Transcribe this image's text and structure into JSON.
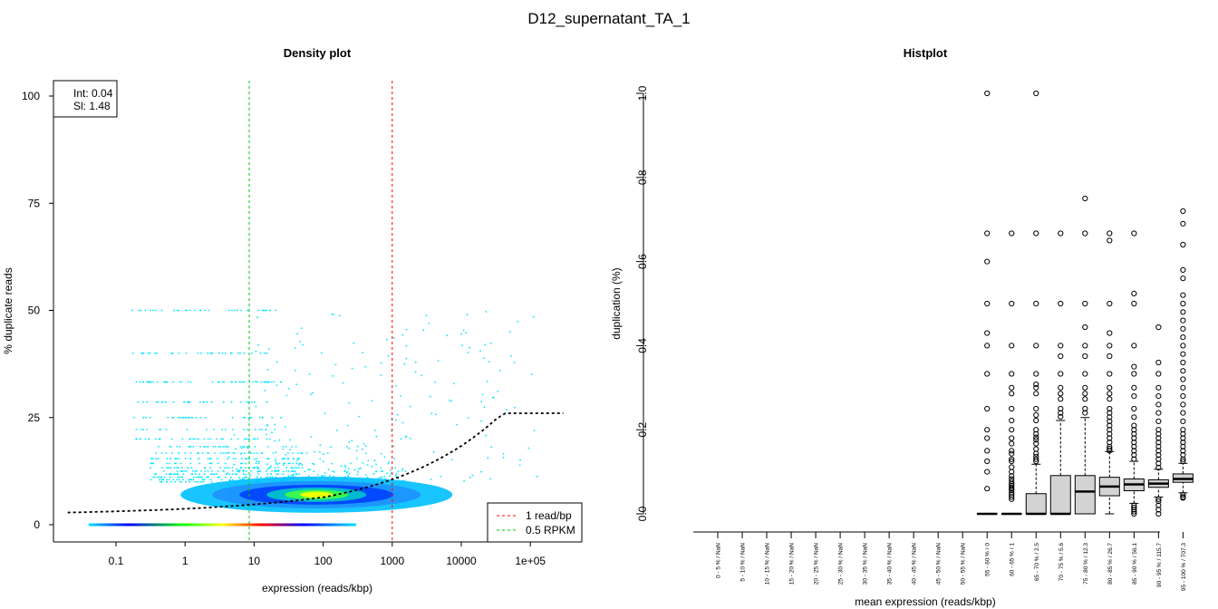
{
  "figure_title": "D12_supernatant_TA_1",
  "chart_data": [
    {
      "type": "scatter",
      "title": "Density plot",
      "xlabel": "expression (reads/kbp)",
      "ylabel": "% duplicate reads",
      "xscale": "log",
      "x_ticks": [
        0.1,
        1,
        10,
        100,
        1000,
        10000,
        100000
      ],
      "x_tick_labels": [
        "0.1",
        "1",
        "10",
        "100",
        "1000",
        "10000",
        "1e+05"
      ],
      "y_ticks": [
        0,
        25,
        50,
        75,
        100
      ],
      "y_tick_labels": [
        "0",
        "25",
        "50",
        "75",
        "100"
      ],
      "xlim": [
        0.02,
        300000
      ],
      "ylim": [
        0,
        100
      ],
      "fit_label_int": "Int: 0.04",
      "fit_label_sl": "Sl: 1.48",
      "fit_intercept": 0.04,
      "fit_slope": 1.48,
      "vlines": [
        {
          "x": 1000,
          "label": "1 read/bp",
          "color": "#ff0000"
        },
        {
          "x": 8.5,
          "label": "0.5 RPKM",
          "color": "#00cc00"
        }
      ],
      "density_center": {
        "x": 80,
        "y": 7
      },
      "legend_position": "bottom-right",
      "fitbox_position": "top-left",
      "point_color": "#00e5ff"
    },
    {
      "type": "box",
      "title": "Histplot",
      "xlabel": "mean expression (reads/kbp)",
      "ylabel": "duplication (%)",
      "y_ticks": [
        0.0,
        0.2,
        0.4,
        0.6,
        0.8,
        1.0
      ],
      "y_tick_labels": [
        "0.0",
        "0.2",
        "0.4",
        "0.6",
        "0.8",
        "1.0"
      ],
      "ylim": [
        0,
        1
      ],
      "box_fill": "#d3d3d3",
      "categories": [
        "0 - 5 % / NaN",
        "5 - 10 % / NaN",
        "10 - 15 % / NaN",
        "15 - 20 % / NaN",
        "20 - 25 % / NaN",
        "25 - 30 % / NaN",
        "30 - 35 % / NaN",
        "35 - 40 % / NaN",
        "40 - 45 % / NaN",
        "45 - 50 % / NaN",
        "50 - 55 % / NaN",
        "55 - 60 % / 0",
        "60 - 65 % / 1",
        "65 - 70 % / 2.5",
        "70 - 75 % / 5.6",
        "75 - 80 % / 12.3",
        "80 - 85 % / 26.7",
        "85 - 90 % / 56.1",
        "90 - 95 % / 115.7",
        "95 - 100 % / 707.3"
      ],
      "boxes": [
        null,
        null,
        null,
        null,
        null,
        null,
        null,
        null,
        null,
        null,
        null,
        {
          "q1": 0,
          "median": 0,
          "q3": 0,
          "wlo": 0,
          "whi": 0,
          "outliers": [
            1.0,
            0.667,
            0.6,
            0.5,
            0.43,
            0.4,
            0.333,
            0.25,
            0.2,
            0.18,
            0.15,
            0.125,
            0.1,
            0.06
          ]
        },
        {
          "q1": 0,
          "median": 0,
          "q3": 0,
          "wlo": 0,
          "whi": 0,
          "outliers": [
            0.667,
            0.5,
            0.4,
            0.333,
            0.3,
            0.286,
            0.25,
            0.222,
            0.2,
            0.18,
            0.167,
            0.15,
            0.143,
            0.13,
            0.125,
            0.111,
            0.1,
            0.09,
            0.083,
            0.077,
            0.071,
            0.067,
            0.063,
            0.059,
            0.056,
            0.05,
            0.045,
            0.04,
            0.035
          ]
        },
        {
          "q1": 0,
          "median": 0,
          "q3": 0.048,
          "wlo": 0,
          "whi": 0.118,
          "outliers": [
            1.0,
            0.667,
            0.5,
            0.4,
            0.333,
            0.308,
            0.3,
            0.286,
            0.25,
            0.235,
            0.222,
            0.2,
            0.19,
            0.182,
            0.176,
            0.167,
            0.154,
            0.143,
            0.136,
            0.13,
            0.125
          ]
        },
        {
          "q1": 0,
          "median": 0,
          "q3": 0.091,
          "wlo": 0,
          "whi": 0.222,
          "outliers": [
            0.667,
            0.5,
            0.4,
            0.375,
            0.333,
            0.3,
            0.286,
            0.273,
            0.25,
            0.24,
            0.231
          ]
        },
        {
          "q1": 0,
          "median": 0.053,
          "q3": 0.091,
          "wlo": 0,
          "whi": 0.229,
          "outliers": [
            0.75,
            0.667,
            0.5,
            0.444,
            0.4,
            0.375,
            0.333,
            0.3,
            0.286,
            0.273,
            0.25,
            0.24
          ]
        },
        {
          "q1": 0.043,
          "median": 0.065,
          "q3": 0.087,
          "wlo": 0,
          "whi": 0.148,
          "outliers": [
            0.667,
            0.65,
            0.5,
            0.43,
            0.4,
            0.375,
            0.333,
            0.3,
            0.286,
            0.273,
            0.25,
            0.24,
            0.23,
            0.22,
            0.21,
            0.2,
            0.19,
            0.18,
            0.17,
            0.16,
            0.155,
            0.15
          ]
        },
        {
          "q1": 0.055,
          "median": 0.07,
          "q3": 0.083,
          "wlo": 0.025,
          "whi": 0.125,
          "outliers": [
            0.667,
            0.524,
            0.5,
            0.4,
            0.35,
            0.333,
            0.3,
            0.28,
            0.25,
            0.23,
            0.21,
            0.2,
            0.19,
            0.18,
            0.17,
            0.16,
            0.15,
            0.14,
            0.13,
            0.02,
            0.015,
            0.01,
            0.005,
            0
          ]
        },
        {
          "q1": 0.063,
          "median": 0.072,
          "q3": 0.081,
          "wlo": 0.04,
          "whi": 0.106,
          "outliers": [
            0.444,
            0.36,
            0.333,
            0.3,
            0.28,
            0.26,
            0.24,
            0.22,
            0.2,
            0.19,
            0.18,
            0.17,
            0.16,
            0.15,
            0.14,
            0.13,
            0.12,
            0.11,
            0.035,
            0.03,
            0.02,
            0.01,
            0
          ]
        },
        {
          "q1": 0.075,
          "median": 0.083,
          "q3": 0.095,
          "wlo": 0.05,
          "whi": 0.12,
          "outliers": [
            0.72,
            0.69,
            0.64,
            0.58,
            0.56,
            0.52,
            0.5,
            0.48,
            0.46,
            0.44,
            0.42,
            0.4,
            0.38,
            0.36,
            0.34,
            0.32,
            0.3,
            0.28,
            0.26,
            0.24,
            0.22,
            0.2,
            0.19,
            0.18,
            0.17,
            0.16,
            0.15,
            0.14,
            0.13,
            0.125,
            0.045,
            0.04,
            0.038
          ]
        }
      ]
    }
  ]
}
